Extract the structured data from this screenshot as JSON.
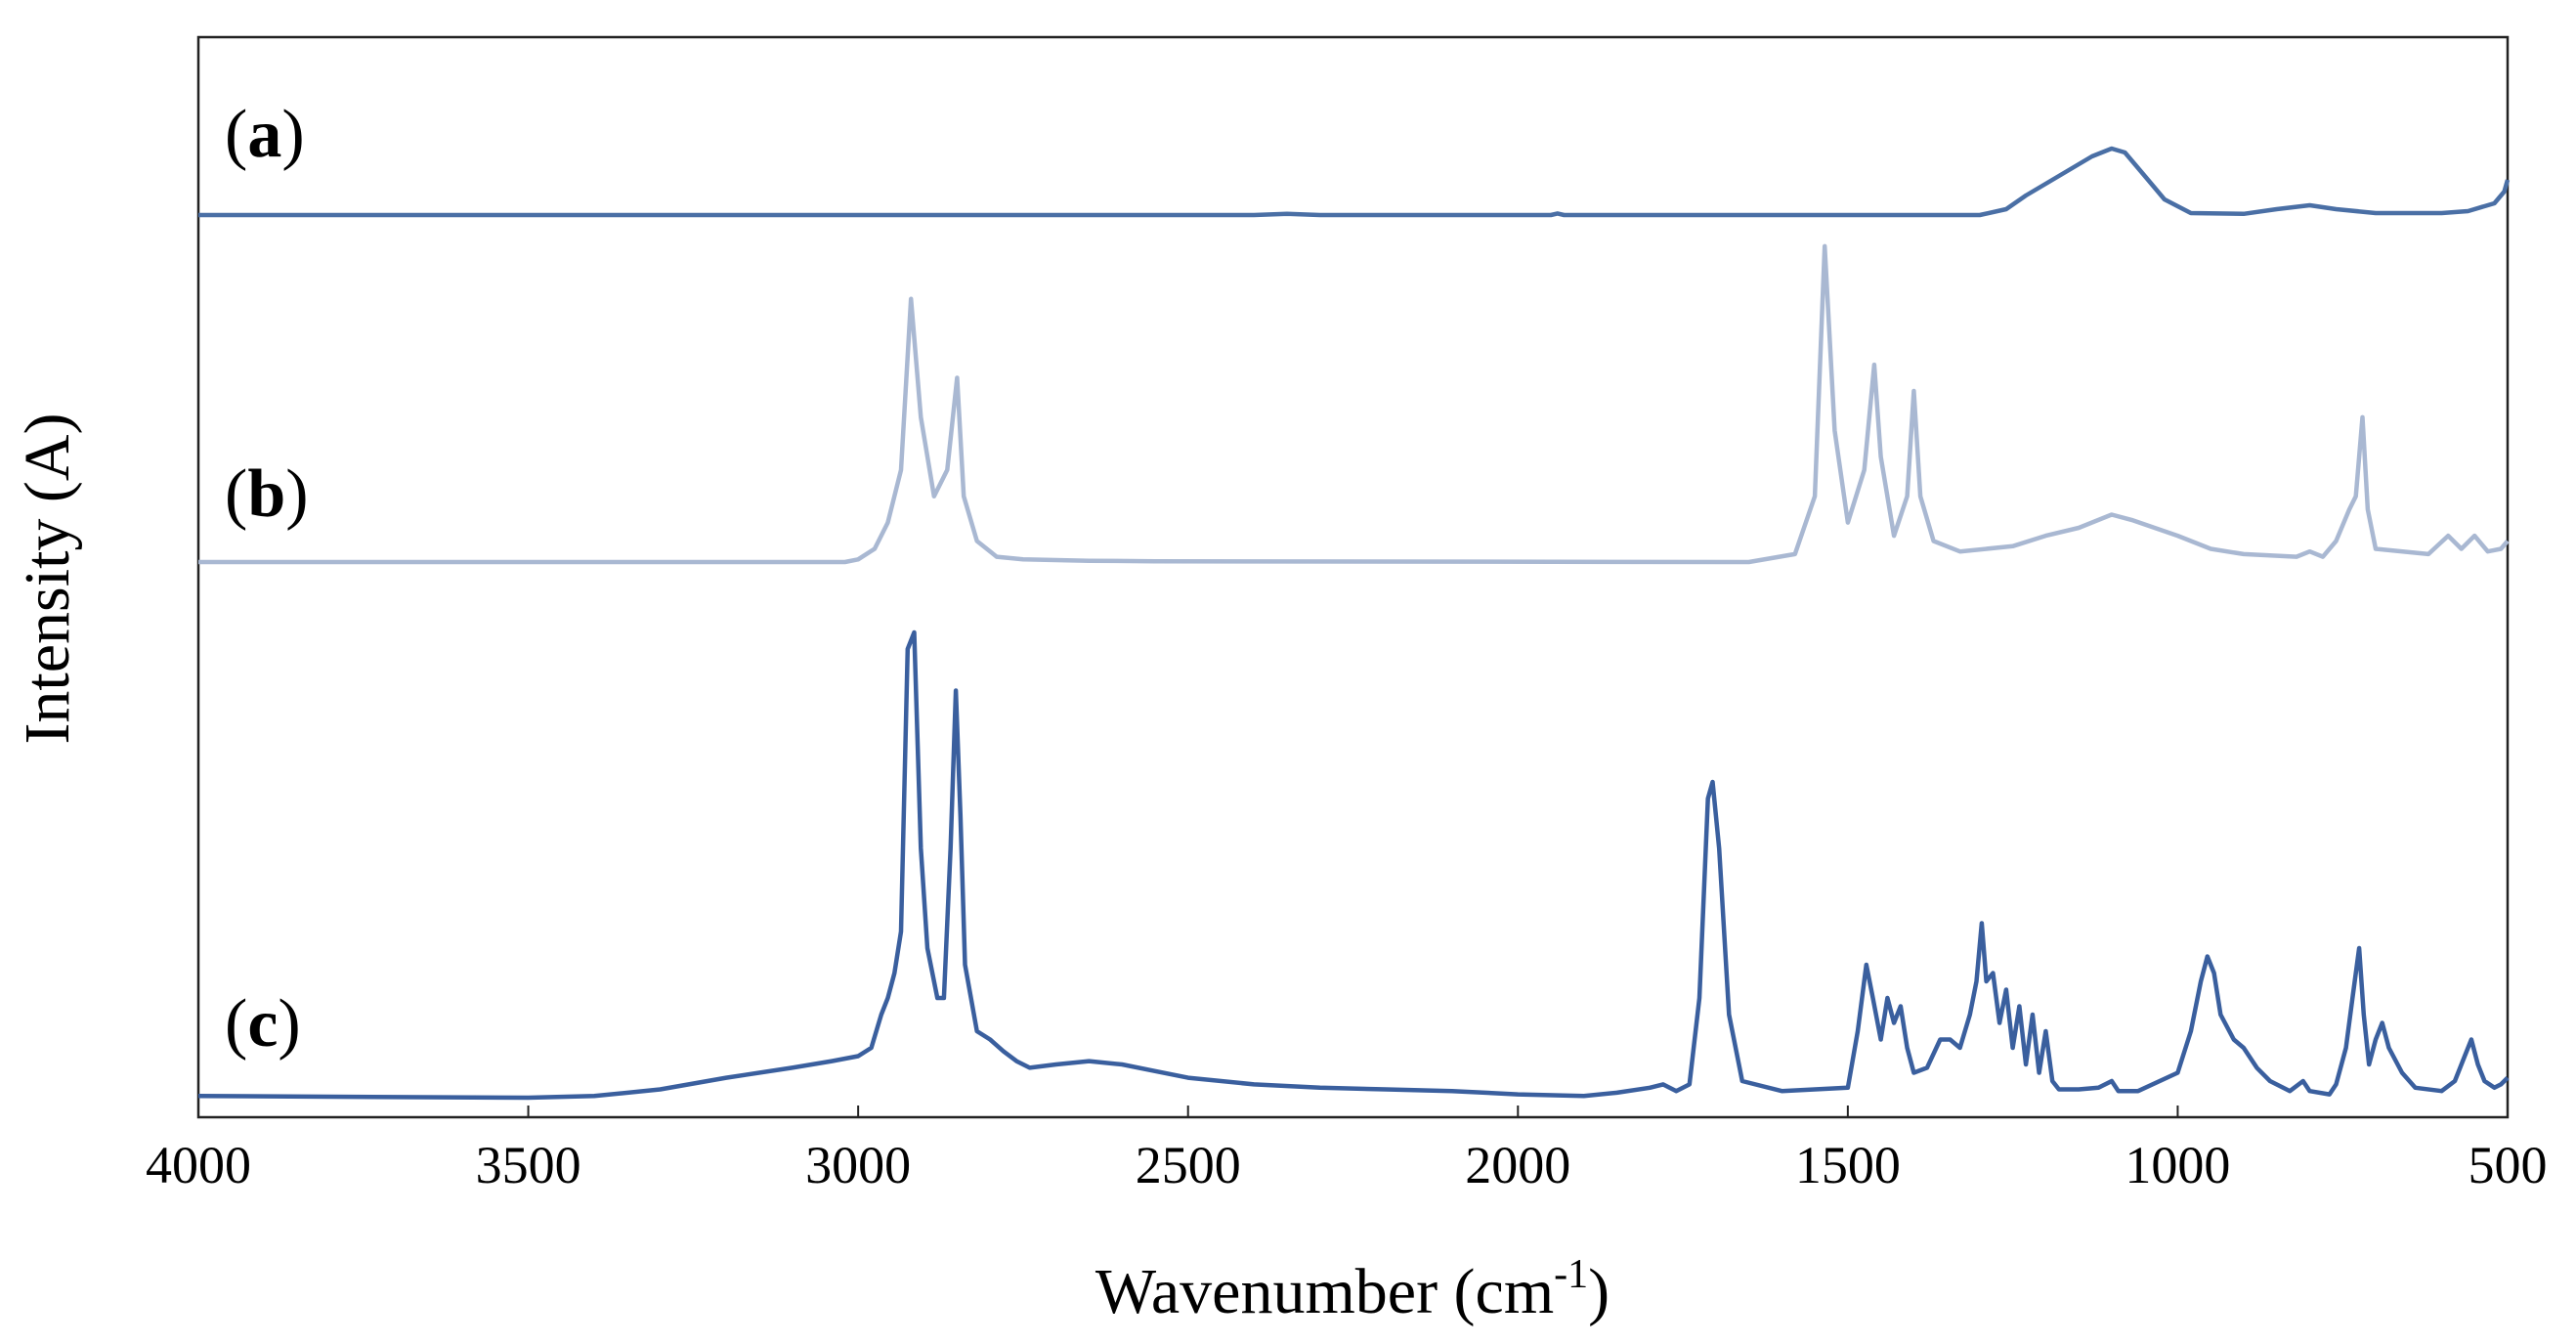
{
  "chart_data": {
    "type": "line",
    "xlabel": "Wavenumber (cm",
    "xlabel_sup": "-1",
    "xlabel_close": ")",
    "ylabel": "Intensity (A)",
    "xlim": [
      4000,
      500
    ],
    "x_reversed": true,
    "x_ticks": [
      {
        "value": 4000,
        "label": "4000"
      },
      {
        "value": 3500,
        "label": "3500"
      },
      {
        "value": 3000,
        "label": "3000"
      },
      {
        "value": 2500,
        "label": "2500"
      },
      {
        "value": 2000,
        "label": "2000"
      },
      {
        "value": 1500,
        "label": "1500"
      },
      {
        "value": 1000,
        "label": "1000"
      },
      {
        "value": 500,
        "label": "500"
      }
    ],
    "y_ticks_shown": false,
    "grid": false,
    "legend": "none",
    "series": [
      {
        "label": "a",
        "color": "#4a6fa5",
        "ylim": [
          0,
          40
        ],
        "points": [
          [
            4000,
            0
          ],
          [
            2400,
            0
          ],
          [
            2350,
            0.3
          ],
          [
            2300,
            0
          ],
          [
            1950,
            0
          ],
          [
            1940,
            0.4
          ],
          [
            1930,
            0
          ],
          [
            1300,
            0
          ],
          [
            1260,
            1.5
          ],
          [
            1230,
            5
          ],
          [
            1180,
            10
          ],
          [
            1130,
            15
          ],
          [
            1100,
            17
          ],
          [
            1080,
            16
          ],
          [
            1050,
            10
          ],
          [
            1020,
            4
          ],
          [
            980,
            0.5
          ],
          [
            900,
            0.3
          ],
          [
            850,
            1.5
          ],
          [
            800,
            2.5
          ],
          [
            760,
            1.5
          ],
          [
            700,
            0.5
          ],
          [
            600,
            0.5
          ],
          [
            560,
            1
          ],
          [
            520,
            3
          ],
          [
            505,
            6
          ],
          [
            500,
            9
          ]
        ]
      },
      {
        "label": "b",
        "color": "#a9b8d2",
        "ylim": [
          0,
          130
        ],
        "points": [
          [
            4000,
            0
          ],
          [
            3020,
            0
          ],
          [
            3000,
            1
          ],
          [
            2975,
            5
          ],
          [
            2955,
            15
          ],
          [
            2935,
            35
          ],
          [
            2920,
            100
          ],
          [
            2905,
            55
          ],
          [
            2885,
            25
          ],
          [
            2865,
            35
          ],
          [
            2850,
            70
          ],
          [
            2840,
            25
          ],
          [
            2820,
            8
          ],
          [
            2790,
            2
          ],
          [
            2750,
            1
          ],
          [
            2650,
            0.5
          ],
          [
            2550,
            0.3
          ],
          [
            1650,
            0
          ],
          [
            1580,
            3
          ],
          [
            1550,
            25
          ],
          [
            1535,
            120
          ],
          [
            1520,
            50
          ],
          [
            1500,
            15
          ],
          [
            1475,
            35
          ],
          [
            1460,
            75
          ],
          [
            1450,
            40
          ],
          [
            1430,
            10
          ],
          [
            1410,
            25
          ],
          [
            1400,
            65
          ],
          [
            1390,
            25
          ],
          [
            1370,
            8
          ],
          [
            1330,
            4
          ],
          [
            1250,
            6
          ],
          [
            1200,
            10
          ],
          [
            1150,
            13
          ],
          [
            1100,
            18
          ],
          [
            1070,
            16
          ],
          [
            1000,
            10
          ],
          [
            950,
            5
          ],
          [
            900,
            3
          ],
          [
            820,
            2
          ],
          [
            800,
            4
          ],
          [
            780,
            2
          ],
          [
            760,
            8
          ],
          [
            740,
            20
          ],
          [
            730,
            25
          ],
          [
            720,
            55
          ],
          [
            712,
            20
          ],
          [
            700,
            5
          ],
          [
            620,
            3
          ],
          [
            590,
            10
          ],
          [
            570,
            5
          ],
          [
            550,
            10
          ],
          [
            530,
            4
          ],
          [
            510,
            5
          ],
          [
            500,
            8
          ]
        ]
      },
      {
        "label": "c",
        "color": "#3a5f9e",
        "ylim": [
          0,
          300
        ],
        "points": [
          [
            4000,
            1
          ],
          [
            3500,
            0
          ],
          [
            3400,
            1
          ],
          [
            3300,
            5
          ],
          [
            3200,
            12
          ],
          [
            3100,
            18
          ],
          [
            3040,
            22
          ],
          [
            3000,
            25
          ],
          [
            2980,
            30
          ],
          [
            2965,
            50
          ],
          [
            2955,
            60
          ],
          [
            2945,
            75
          ],
          [
            2935,
            100
          ],
          [
            2925,
            270
          ],
          [
            2915,
            280
          ],
          [
            2905,
            150
          ],
          [
            2895,
            90
          ],
          [
            2880,
            60
          ],
          [
            2870,
            60
          ],
          [
            2860,
            150
          ],
          [
            2852,
            245
          ],
          [
            2845,
            170
          ],
          [
            2838,
            80
          ],
          [
            2820,
            40
          ],
          [
            2800,
            35
          ],
          [
            2780,
            28
          ],
          [
            2760,
            22
          ],
          [
            2740,
            18
          ],
          [
            2700,
            20
          ],
          [
            2650,
            22
          ],
          [
            2600,
            20
          ],
          [
            2550,
            16
          ],
          [
            2500,
            12
          ],
          [
            2400,
            8
          ],
          [
            2300,
            6
          ],
          [
            2200,
            5
          ],
          [
            2100,
            4
          ],
          [
            2000,
            2
          ],
          [
            1900,
            1
          ],
          [
            1850,
            3
          ],
          [
            1800,
            6
          ],
          [
            1780,
            8
          ],
          [
            1760,
            4
          ],
          [
            1740,
            8
          ],
          [
            1725,
            60
          ],
          [
            1712,
            180
          ],
          [
            1705,
            190
          ],
          [
            1695,
            150
          ],
          [
            1680,
            50
          ],
          [
            1660,
            10
          ],
          [
            1600,
            4
          ],
          [
            1500,
            6
          ],
          [
            1485,
            40
          ],
          [
            1472,
            80
          ],
          [
            1462,
            60
          ],
          [
            1450,
            35
          ],
          [
            1440,
            60
          ],
          [
            1430,
            45
          ],
          [
            1420,
            55
          ],
          [
            1410,
            30
          ],
          [
            1400,
            15
          ],
          [
            1380,
            18
          ],
          [
            1360,
            35
          ],
          [
            1345,
            35
          ],
          [
            1330,
            30
          ],
          [
            1315,
            50
          ],
          [
            1305,
            70
          ],
          [
            1297,
            105
          ],
          [
            1290,
            70
          ],
          [
            1280,
            75
          ],
          [
            1270,
            45
          ],
          [
            1260,
            65
          ],
          [
            1250,
            30
          ],
          [
            1240,
            55
          ],
          [
            1230,
            20
          ],
          [
            1220,
            50
          ],
          [
            1210,
            15
          ],
          [
            1200,
            40
          ],
          [
            1190,
            10
          ],
          [
            1180,
            5
          ],
          [
            1150,
            5
          ],
          [
            1120,
            6
          ],
          [
            1100,
            10
          ],
          [
            1090,
            4
          ],
          [
            1060,
            4
          ],
          [
            1000,
            15
          ],
          [
            980,
            40
          ],
          [
            965,
            70
          ],
          [
            955,
            85
          ],
          [
            945,
            75
          ],
          [
            935,
            50
          ],
          [
            915,
            35
          ],
          [
            900,
            30
          ],
          [
            880,
            18
          ],
          [
            860,
            10
          ],
          [
            830,
            4
          ],
          [
            810,
            10
          ],
          [
            800,
            4
          ],
          [
            770,
            2
          ],
          [
            760,
            8
          ],
          [
            745,
            30
          ],
          [
            735,
            60
          ],
          [
            725,
            90
          ],
          [
            718,
            50
          ],
          [
            710,
            20
          ],
          [
            700,
            35
          ],
          [
            690,
            45
          ],
          [
            680,
            30
          ],
          [
            660,
            15
          ],
          [
            640,
            6
          ],
          [
            600,
            4
          ],
          [
            580,
            10
          ],
          [
            565,
            25
          ],
          [
            555,
            35
          ],
          [
            545,
            20
          ],
          [
            535,
            10
          ],
          [
            520,
            6
          ],
          [
            510,
            8
          ],
          [
            500,
            12
          ]
        ]
      }
    ]
  }
}
